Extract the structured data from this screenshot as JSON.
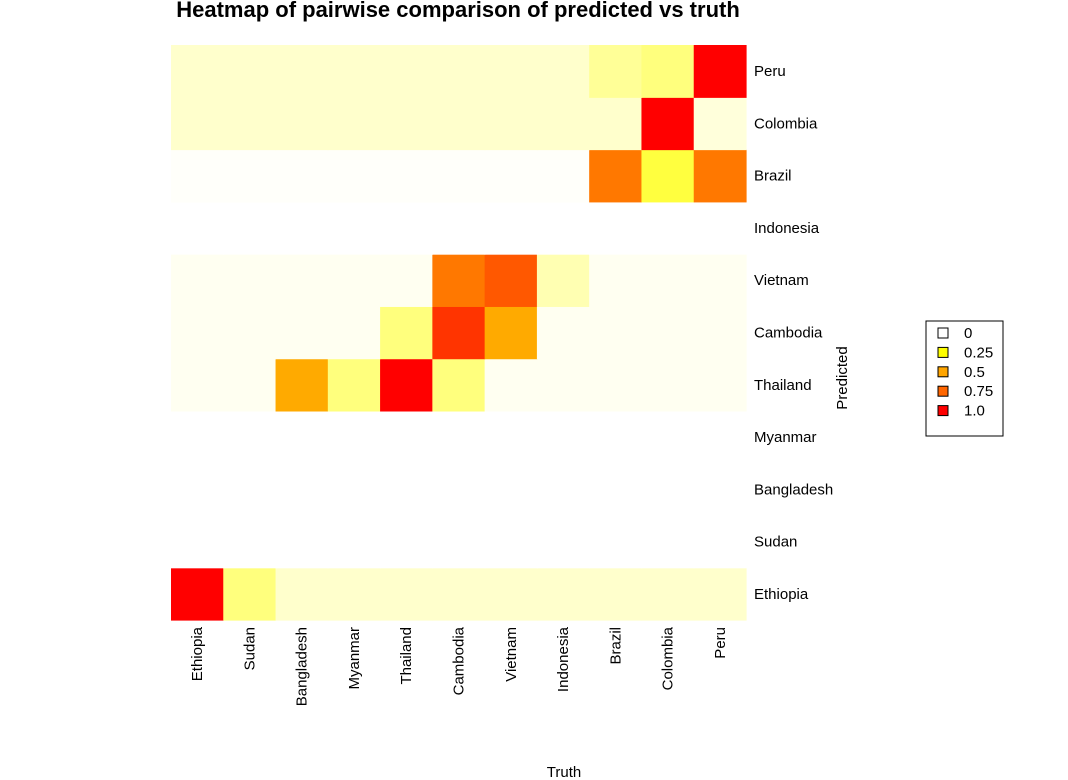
{
  "chart_data": {
    "type": "heatmap",
    "title": "Heatmap of pairwise comparison of predicted vs truth",
    "xlabel": "Truth",
    "ylabel": "Predicted",
    "x_categories": [
      "Ethiopia",
      "Sudan",
      "Bangladesh",
      "Myanmar",
      "Thailand",
      "Cambodia",
      "Vietnam",
      "Indonesia",
      "Brazil",
      "Colombia",
      "Peru"
    ],
    "y_categories": [
      "Ethiopia",
      "Sudan",
      "Bangladesh",
      "Myanmar",
      "Thailand",
      "Cambodia",
      "Vietnam",
      "Indonesia",
      "Brazil",
      "Colombia",
      "Peru"
    ],
    "values": [
      [
        1.0,
        0.2,
        0.08,
        0.08,
        0.08,
        0.08,
        0.08,
        0.08,
        0.08,
        0.08,
        0.08
      ],
      [
        0,
        0,
        0,
        0,
        0,
        0,
        0,
        0,
        0,
        0,
        0
      ],
      [
        0,
        0,
        0,
        0,
        0,
        0,
        0,
        0,
        0,
        0,
        0
      ],
      [
        0,
        0,
        0,
        0,
        0,
        0,
        0,
        0,
        0,
        0,
        0
      ],
      [
        0.03,
        0.03,
        0.5,
        0.2,
        1.0,
        0.2,
        0.03,
        0.03,
        0.03,
        0.03,
        0.03
      ],
      [
        0.03,
        0.03,
        0.03,
        0.03,
        0.2,
        0.88,
        0.5,
        0.03,
        0.03,
        0.03,
        0.03
      ],
      [
        0.03,
        0.03,
        0.03,
        0.03,
        0.03,
        0.7,
        0.78,
        0.12,
        0.03,
        0.03,
        0.03
      ],
      [
        0,
        0,
        0,
        0,
        0,
        0,
        0,
        0,
        0,
        0,
        0
      ],
      [
        0.015,
        0.015,
        0.015,
        0.015,
        0.015,
        0.015,
        0.015,
        0.015,
        0.7,
        0.25,
        0.7
      ],
      [
        0.08,
        0.08,
        0.08,
        0.08,
        0.08,
        0.08,
        0.08,
        0.08,
        0.08,
        1.0,
        0.06
      ],
      [
        0.08,
        0.08,
        0.08,
        0.08,
        0.08,
        0.08,
        0.08,
        0.08,
        0.16,
        0.2,
        1.0
      ]
    ],
    "legend": {
      "position": "right",
      "entries": [
        {
          "label": "0",
          "color": "#ffffff"
        },
        {
          "label": "0.25",
          "color": "#ffff00"
        },
        {
          "label": "0.5",
          "color": "#ffa500"
        },
        {
          "label": "0.75",
          "color": "#ff6600"
        },
        {
          "label": "1.0",
          "color": "#ff0000"
        }
      ]
    },
    "color_scale": [
      "#ffffff",
      "#ffffcc",
      "#ffff66",
      "#ffff00",
      "#ffa500",
      "#ff6600",
      "#ff0000"
    ]
  }
}
